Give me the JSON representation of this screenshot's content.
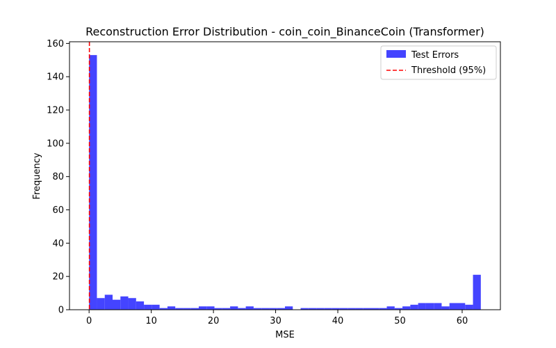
{
  "chart_data": {
    "type": "bar",
    "title": "Reconstruction Error Distribution - coin_coin_BinanceCoin (Transformer)",
    "xlabel": "MSE",
    "ylabel": "Frequency",
    "xlim": [
      -3.15,
      66.15
    ],
    "ylim": [
      0,
      161
    ],
    "xticks": [
      0,
      10,
      20,
      30,
      40,
      50,
      60
    ],
    "yticks": [
      0,
      20,
      40,
      60,
      80,
      100,
      120,
      140,
      160
    ],
    "grid": false,
    "legend_position": "top-right",
    "bin_edges": [
      0,
      1.26,
      2.52,
      3.78,
      5.04,
      6.3,
      7.56,
      8.82,
      10.08,
      11.34,
      12.6,
      13.86,
      15.12,
      16.38,
      17.64,
      18.9,
      20.16,
      21.42,
      22.68,
      23.94,
      25.2,
      26.46,
      27.72,
      28.98,
      30.24,
      31.5,
      32.76,
      34.02,
      35.28,
      36.54,
      37.8,
      39.06,
      40.32,
      41.58,
      42.84,
      44.1,
      45.36,
      46.62,
      47.88,
      49.14,
      50.4,
      51.66,
      52.92,
      54.18,
      55.44,
      56.7,
      57.96,
      59.22,
      60.48,
      61.74,
      63
    ],
    "series": [
      {
        "name": "Test Errors",
        "color": "#4444ff",
        "values": [
          153,
          7,
          9,
          6,
          8,
          7,
          5,
          3,
          3,
          1,
          2,
          1,
          1,
          1,
          2,
          2,
          1,
          1,
          2,
          1,
          2,
          1,
          1,
          1,
          1,
          2,
          0,
          1,
          1,
          1,
          1,
          1,
          1,
          1,
          1,
          1,
          1,
          1,
          2,
          1,
          2,
          3,
          4,
          4,
          4,
          2,
          4,
          4,
          3,
          21
        ]
      }
    ],
    "threshold": {
      "name": "Threshold (95%)",
      "value": 0.05,
      "color": "#ff0000",
      "style": "dashed"
    }
  }
}
